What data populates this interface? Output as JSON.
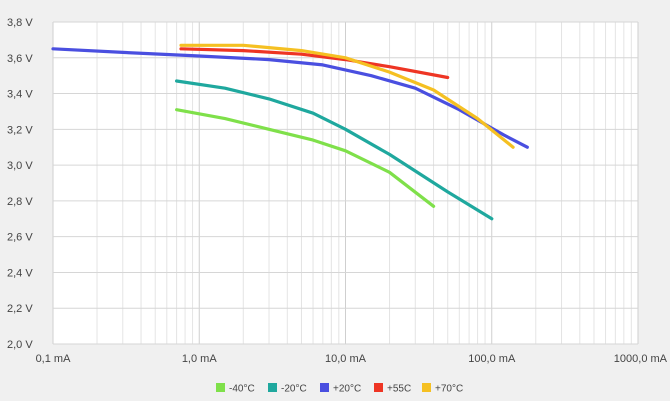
{
  "chart_data": {
    "type": "line",
    "title": "",
    "xlabel": "",
    "ylabel": "",
    "x_scale": "log",
    "xlim": [
      0.1,
      1000
    ],
    "ylim": [
      2.0,
      3.8
    ],
    "grid": true,
    "legend_position": "bottom",
    "x_ticks": [
      {
        "value": 0.1,
        "label": "0,1 mA"
      },
      {
        "value": 1,
        "label": "1,0 mA"
      },
      {
        "value": 10,
        "label": "10,0 mA"
      },
      {
        "value": 100,
        "label": "100,0 mA"
      },
      {
        "value": 1000,
        "label": "1000,0 mA"
      }
    ],
    "y_ticks": [
      {
        "value": 2.0,
        "label": "2,0 V"
      },
      {
        "value": 2.2,
        "label": "2,2 V"
      },
      {
        "value": 2.4,
        "label": "2,4 V"
      },
      {
        "value": 2.6,
        "label": "2,6 V"
      },
      {
        "value": 2.8,
        "label": "2,8 V"
      },
      {
        "value": 3.0,
        "label": "3,0 V"
      },
      {
        "value": 3.2,
        "label": "3,2 V"
      },
      {
        "value": 3.4,
        "label": "3,4 V"
      },
      {
        "value": 3.6,
        "label": "3,6 V"
      },
      {
        "value": 3.8,
        "label": "3,8 V"
      }
    ],
    "series": [
      {
        "name": "-40°C",
        "color": "#7fe04a",
        "points": [
          [
            0.7,
            3.31
          ],
          [
            1.5,
            3.26
          ],
          [
            3,
            3.2
          ],
          [
            6,
            3.14
          ],
          [
            10,
            3.08
          ],
          [
            20,
            2.96
          ],
          [
            40,
            2.77
          ]
        ]
      },
      {
        "name": "-20°C",
        "color": "#1fa89e",
        "points": [
          [
            0.7,
            3.47
          ],
          [
            1.5,
            3.43
          ],
          [
            3,
            3.37
          ],
          [
            6,
            3.29
          ],
          [
            10,
            3.2
          ],
          [
            20,
            3.06
          ],
          [
            50,
            2.85
          ],
          [
            100,
            2.7
          ]
        ]
      },
      {
        "name": "+20°C",
        "color": "#4a4fe0",
        "points": [
          [
            0.1,
            3.65
          ],
          [
            0.3,
            3.63
          ],
          [
            1,
            3.61
          ],
          [
            3,
            3.59
          ],
          [
            7,
            3.56
          ],
          [
            15,
            3.5
          ],
          [
            30,
            3.43
          ],
          [
            60,
            3.31
          ],
          [
            120,
            3.17
          ],
          [
            175,
            3.1
          ]
        ]
      },
      {
        "name": "+55C",
        "color": "#ee3524",
        "points": [
          [
            0.75,
            3.65
          ],
          [
            2,
            3.64
          ],
          [
            5,
            3.62
          ],
          [
            10,
            3.59
          ],
          [
            20,
            3.55
          ],
          [
            50,
            3.49
          ]
        ]
      },
      {
        "name": "+70°C",
        "color": "#f5c022",
        "points": [
          [
            0.75,
            3.67
          ],
          [
            2,
            3.67
          ],
          [
            5,
            3.64
          ],
          [
            10,
            3.6
          ],
          [
            20,
            3.52
          ],
          [
            40,
            3.42
          ],
          [
            80,
            3.26
          ],
          [
            140,
            3.1
          ]
        ]
      }
    ]
  }
}
